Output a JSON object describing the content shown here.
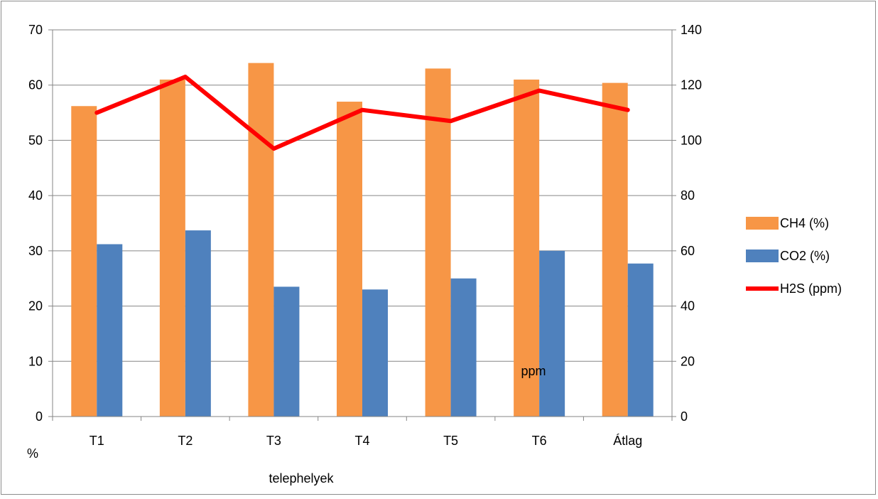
{
  "chart_data": {
    "type": "bar",
    "categories": [
      "T1",
      "T2",
      "T3",
      "T4",
      "T5",
      "T6",
      "Átlag"
    ],
    "xlabel": "telephelyek",
    "ylabel_left": "%",
    "ylabel_right": "ppm",
    "ylim_left": [
      0,
      70
    ],
    "ylim_right": [
      0,
      140
    ],
    "yticks_left": [
      "0",
      "10",
      "20",
      "30",
      "40",
      "50",
      "60",
      "70"
    ],
    "yticks_right": [
      "0",
      "20",
      "40",
      "60",
      "80",
      "100",
      "120",
      "140"
    ],
    "grid": true,
    "legend_position": "right",
    "series": [
      {
        "name": "CH4 (%)",
        "kind": "bar",
        "axis": "left",
        "color": "#F79646",
        "values": [
          56.2,
          61,
          64,
          57,
          63,
          61,
          60.4
        ]
      },
      {
        "name": "CO2 (%)",
        "kind": "bar",
        "axis": "left",
        "color": "#4F81BD",
        "values": [
          31.2,
          33.7,
          23.5,
          23,
          25,
          30,
          27.7
        ]
      },
      {
        "name": "H2S (ppm)",
        "kind": "line",
        "axis": "right",
        "color": "#FF0000",
        "values": [
          110,
          123,
          97,
          111,
          107,
          118,
          111
        ]
      }
    ]
  }
}
